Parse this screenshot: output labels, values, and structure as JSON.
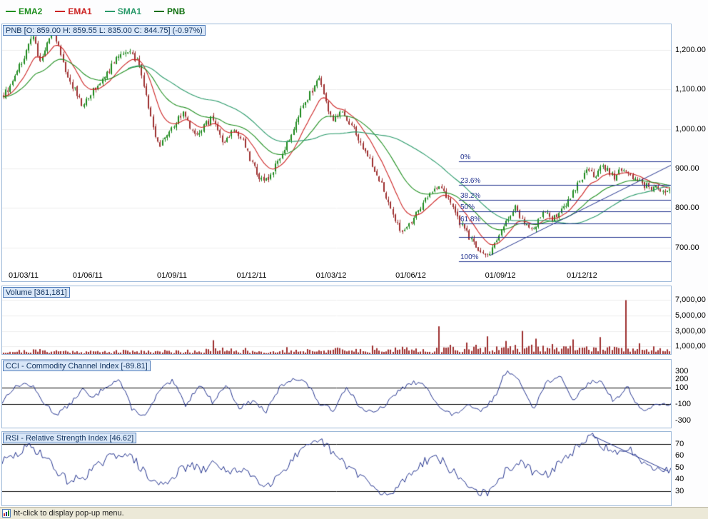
{
  "app": {
    "status_bar": {
      "text": "ht-click to display pop-up menu."
    },
    "colors": {
      "panel_border": "#9cb8d8",
      "annotation_navy": "#24348f",
      "title_bg": "#d9e7f8",
      "title_border": "#4f7cba"
    }
  },
  "legend": {
    "items": [
      {
        "label": "EMA2",
        "color": "#1f8f1f"
      },
      {
        "label": "EMA1",
        "color": "#cc2222"
      },
      {
        "label": "SMA1",
        "color": "#2a9a6a"
      },
      {
        "label": "PNB",
        "color": "#0b6e0b"
      }
    ]
  },
  "chart_data": [
    {
      "type": "candlestick",
      "panel": "price",
      "title": "PNB [O: 859.00 H: 859.55 L: 835.00 C: 844.75] (-0.97%)",
      "symbol": "PNB",
      "ohlc": {
        "open": "859.00",
        "high": "859.55",
        "low": "835.00",
        "close": "844.75",
        "change_pct": "-0.97%"
      },
      "ylim": [
        645,
        1265
      ],
      "candle_count": 290,
      "up_color": "#1e8a1e",
      "down_color": "#9e3030",
      "y_ticks": [
        {
          "label": "1,200.00",
          "value": 1200
        },
        {
          "label": "1,100.00",
          "value": 1100
        },
        {
          "label": "1,000.00",
          "value": 1000
        },
        {
          "label": "900.00",
          "value": 900
        },
        {
          "label": "800.00",
          "value": 800
        },
        {
          "label": "700.00",
          "value": 700
        }
      ],
      "x_ticks": [
        {
          "label": "01/03/11",
          "t": 0.032
        },
        {
          "label": "01/06/11",
          "t": 0.128
        },
        {
          "label": "01/09/11",
          "t": 0.254
        },
        {
          "label": "01/12/11",
          "t": 0.373
        },
        {
          "label": "01/03/12",
          "t": 0.492
        },
        {
          "label": "01/06/12",
          "t": 0.611
        },
        {
          "label": "01/09/12",
          "t": 0.745
        },
        {
          "label": "01/12/12",
          "t": 0.867
        }
      ],
      "close_anchors": [
        [
          0,
          1085
        ],
        [
          0.015,
          1120
        ],
        [
          0.03,
          1180
        ],
        [
          0.045,
          1240
        ],
        [
          0.055,
          1170
        ],
        [
          0.065,
          1210
        ],
        [
          0.075,
          1248
        ],
        [
          0.085,
          1200
        ],
        [
          0.095,
          1130
        ],
        [
          0.11,
          1090
        ],
        [
          0.12,
          1055
        ],
        [
          0.135,
          1100
        ],
        [
          0.15,
          1125
        ],
        [
          0.165,
          1165
        ],
        [
          0.18,
          1198
        ],
        [
          0.195,
          1185
        ],
        [
          0.205,
          1160
        ],
        [
          0.215,
          1080
        ],
        [
          0.225,
          1000
        ],
        [
          0.235,
          955
        ],
        [
          0.245,
          985
        ],
        [
          0.255,
          1010
        ],
        [
          0.27,
          1040
        ],
        [
          0.285,
          985
        ],
        [
          0.3,
          1005
        ],
        [
          0.315,
          1030
        ],
        [
          0.33,
          965
        ],
        [
          0.345,
          1000
        ],
        [
          0.36,
          970
        ],
        [
          0.375,
          905
        ],
        [
          0.39,
          865
        ],
        [
          0.4,
          880
        ],
        [
          0.415,
          930
        ],
        [
          0.43,
          980
        ],
        [
          0.445,
          1040
        ],
        [
          0.46,
          1090
        ],
        [
          0.475,
          1128
        ],
        [
          0.485,
          1060
        ],
        [
          0.495,
          1020
        ],
        [
          0.51,
          1045
        ],
        [
          0.525,
          1000
        ],
        [
          0.54,
          955
        ],
        [
          0.555,
          905
        ],
        [
          0.57,
          850
        ],
        [
          0.585,
          780
        ],
        [
          0.6,
          735
        ],
        [
          0.61,
          760
        ],
        [
          0.625,
          800
        ],
        [
          0.64,
          838
        ],
        [
          0.655,
          858
        ],
        [
          0.668,
          820
        ],
        [
          0.682,
          770
        ],
        [
          0.7,
          725
        ],
        [
          0.715,
          692
        ],
        [
          0.728,
          684
        ],
        [
          0.74,
          712
        ],
        [
          0.755,
          772
        ],
        [
          0.768,
          800
        ],
        [
          0.78,
          765
        ],
        [
          0.795,
          745
        ],
        [
          0.81,
          788
        ],
        [
          0.825,
          770
        ],
        [
          0.84,
          800
        ],
        [
          0.855,
          840
        ],
        [
          0.868,
          875
        ],
        [
          0.878,
          898
        ],
        [
          0.888,
          882
        ],
        [
          0.898,
          908
        ],
        [
          0.908,
          892
        ],
        [
          0.918,
          878
        ],
        [
          0.93,
          902
        ],
        [
          0.945,
          880
        ],
        [
          0.96,
          858
        ],
        [
          0.975,
          850
        ],
        [
          1,
          845
        ]
      ],
      "overlays": [
        {
          "name": "EMA1",
          "type": "ema",
          "period": 12,
          "color": "#cc2222"
        },
        {
          "name": "EMA2",
          "type": "ema",
          "period": 30,
          "color": "#1f8f1f"
        },
        {
          "name": "SMA1",
          "type": "sma",
          "period": 55,
          "color": "#2a9a6a"
        }
      ],
      "fibonacci": {
        "start_t": 0.683,
        "color": "#24348f",
        "levels": [
          {
            "label": "0%",
            "value": 918
          },
          {
            "label": "23.6%",
            "value": 858
          },
          {
            "label": "38.2%",
            "value": 821
          },
          {
            "label": "50%",
            "value": 791
          },
          {
            "label": "61.8%",
            "value": 761
          },
          {
            "label": "",
            "value": 727
          },
          {
            "label": "100%",
            "value": 665
          }
        ]
      },
      "trendlines": [
        {
          "from": [
            0.73,
            680
          ],
          "to": [
            1.0,
            908
          ],
          "color": "#24348f"
        }
      ]
    },
    {
      "type": "bar",
      "panel": "volume",
      "title": "Volume [361,181]",
      "current": "361,181",
      "ylim": [
        0,
        8800000
      ],
      "bar_color": "#9e3030",
      "y_ticks": [
        {
          "label": "7,000,00",
          "value": 7000000
        },
        {
          "label": "5,000,00",
          "value": 5000000
        },
        {
          "label": "3,000,00",
          "value": 3000000
        },
        {
          "label": "1,000,00",
          "value": 1000000
        }
      ],
      "base_anchors": [
        [
          0,
          260000
        ],
        [
          0.05,
          380000
        ],
        [
          0.1,
          300000
        ],
        [
          0.15,
          260000
        ],
        [
          0.2,
          340000
        ],
        [
          0.25,
          300000
        ],
        [
          0.3,
          380000
        ],
        [
          0.33,
          480000
        ],
        [
          0.36,
          300000
        ],
        [
          0.4,
          260000
        ],
        [
          0.44,
          380000
        ],
        [
          0.48,
          480000
        ],
        [
          0.52,
          400000
        ],
        [
          0.56,
          440000
        ],
        [
          0.6,
          500000
        ],
        [
          0.64,
          450000
        ],
        [
          0.68,
          580000
        ],
        [
          0.72,
          680000
        ],
        [
          0.76,
          640000
        ],
        [
          0.8,
          680000
        ],
        [
          0.84,
          600000
        ],
        [
          0.88,
          640000
        ],
        [
          0.92,
          520000
        ],
        [
          0.96,
          460000
        ],
        [
          1,
          400000
        ]
      ],
      "spikes": [
        [
          0.315,
          1800000
        ],
        [
          0.365,
          800000
        ],
        [
          0.425,
          900000
        ],
        [
          0.5,
          850000
        ],
        [
          0.555,
          1100000
        ],
        [
          0.6,
          950000
        ],
        [
          0.655,
          3600000
        ],
        [
          0.672,
          1200000
        ],
        [
          0.695,
          1500000
        ],
        [
          0.728,
          2300000
        ],
        [
          0.755,
          1700000
        ],
        [
          0.78,
          3000000
        ],
        [
          0.8,
          2000000
        ],
        [
          0.825,
          1300000
        ],
        [
          0.855,
          1900000
        ],
        [
          0.895,
          2200000
        ],
        [
          0.935,
          7000000
        ],
        [
          0.955,
          1400000
        ],
        [
          0.975,
          1000000
        ]
      ]
    },
    {
      "type": "line",
      "panel": "cci",
      "title": "CCI - Commodity Channel Index [-89.81]",
      "current": -89.81,
      "ylim": [
        -390,
        440
      ],
      "line_color": "#24348f",
      "h_lines": [
        100,
        -100
      ],
      "y_ticks": [
        {
          "label": "300",
          "value": 300
        },
        {
          "label": "200",
          "value": 200
        },
        {
          "label": "100",
          "value": 100
        },
        {
          "label": "-100",
          "value": -100
        },
        {
          "label": "-300",
          "value": -300
        }
      ],
      "anchors": [
        [
          0,
          -80
        ],
        [
          0.012,
          60
        ],
        [
          0.03,
          150
        ],
        [
          0.045,
          120
        ],
        [
          0.06,
          -60
        ],
        [
          0.08,
          -230
        ],
        [
          0.1,
          -120
        ],
        [
          0.12,
          80
        ],
        [
          0.135,
          -40
        ],
        [
          0.155,
          120
        ],
        [
          0.175,
          200
        ],
        [
          0.195,
          -170
        ],
        [
          0.215,
          -250
        ],
        [
          0.235,
          60
        ],
        [
          0.255,
          180
        ],
        [
          0.275,
          -120
        ],
        [
          0.295,
          150
        ],
        [
          0.315,
          -80
        ],
        [
          0.335,
          140
        ],
        [
          0.355,
          -150
        ],
        [
          0.375,
          -60
        ],
        [
          0.395,
          -200
        ],
        [
          0.415,
          100
        ],
        [
          0.435,
          220
        ],
        [
          0.455,
          160
        ],
        [
          0.475,
          -100
        ],
        [
          0.495,
          -180
        ],
        [
          0.515,
          120
        ],
        [
          0.535,
          -140
        ],
        [
          0.555,
          -220
        ],
        [
          0.575,
          -100
        ],
        [
          0.595,
          80
        ],
        [
          0.615,
          160
        ],
        [
          0.635,
          120
        ],
        [
          0.655,
          -160
        ],
        [
          0.675,
          -240
        ],
        [
          0.695,
          -120
        ],
        [
          0.715,
          -200
        ],
        [
          0.735,
          -40
        ],
        [
          0.755,
          330
        ],
        [
          0.775,
          150
        ],
        [
          0.795,
          -150
        ],
        [
          0.815,
          180
        ],
        [
          0.835,
          220
        ],
        [
          0.855,
          -60
        ],
        [
          0.875,
          150
        ],
        [
          0.895,
          190
        ],
        [
          0.915,
          -70
        ],
        [
          0.935,
          110
        ],
        [
          0.955,
          -180
        ],
        [
          0.975,
          -130
        ],
        [
          1,
          -90
        ]
      ]
    },
    {
      "type": "line",
      "panel": "rsi",
      "title": "RSI - Relative Strength Index [46.62]",
      "current": 46.62,
      "ylim": [
        18,
        80
      ],
      "line_color": "#24348f",
      "h_lines": [
        70,
        30
      ],
      "y_ticks": [
        {
          "label": "70",
          "value": 70
        },
        {
          "label": "60",
          "value": 60
        },
        {
          "label": "50",
          "value": 50
        },
        {
          "label": "40",
          "value": 40
        },
        {
          "label": "30",
          "value": 30
        }
      ],
      "anchors": [
        [
          0,
          55
        ],
        [
          0.02,
          60
        ],
        [
          0.04,
          68
        ],
        [
          0.06,
          62
        ],
        [
          0.08,
          48
        ],
        [
          0.1,
          38
        ],
        [
          0.12,
          42
        ],
        [
          0.14,
          50
        ],
        [
          0.16,
          58
        ],
        [
          0.18,
          63
        ],
        [
          0.2,
          55
        ],
        [
          0.22,
          40
        ],
        [
          0.24,
          35
        ],
        [
          0.26,
          45
        ],
        [
          0.28,
          52
        ],
        [
          0.3,
          47
        ],
        [
          0.32,
          55
        ],
        [
          0.34,
          44
        ],
        [
          0.36,
          50
        ],
        [
          0.38,
          40
        ],
        [
          0.4,
          36
        ],
        [
          0.42,
          48
        ],
        [
          0.44,
          60
        ],
        [
          0.46,
          68
        ],
        [
          0.48,
          72
        ],
        [
          0.5,
          58
        ],
        [
          0.52,
          50
        ],
        [
          0.54,
          42
        ],
        [
          0.56,
          30
        ],
        [
          0.575,
          25
        ],
        [
          0.59,
          33
        ],
        [
          0.61,
          45
        ],
        [
          0.63,
          55
        ],
        [
          0.65,
          60
        ],
        [
          0.67,
          48
        ],
        [
          0.69,
          38
        ],
        [
          0.71,
          30
        ],
        [
          0.73,
          28
        ],
        [
          0.75,
          45
        ],
        [
          0.77,
          55
        ],
        [
          0.79,
          48
        ],
        [
          0.81,
          42
        ],
        [
          0.83,
          52
        ],
        [
          0.85,
          62
        ],
        [
          0.87,
          70
        ],
        [
          0.882,
          77
        ],
        [
          0.9,
          68
        ],
        [
          0.92,
          60
        ],
        [
          0.94,
          65
        ],
        [
          0.96,
          55
        ],
        [
          0.98,
          50
        ],
        [
          1,
          46.6
        ]
      ],
      "trendlines": [
        {
          "from": [
            0.882,
            77
          ],
          "to": [
            0.995,
            47
          ],
          "color": "#24348f"
        }
      ]
    }
  ]
}
